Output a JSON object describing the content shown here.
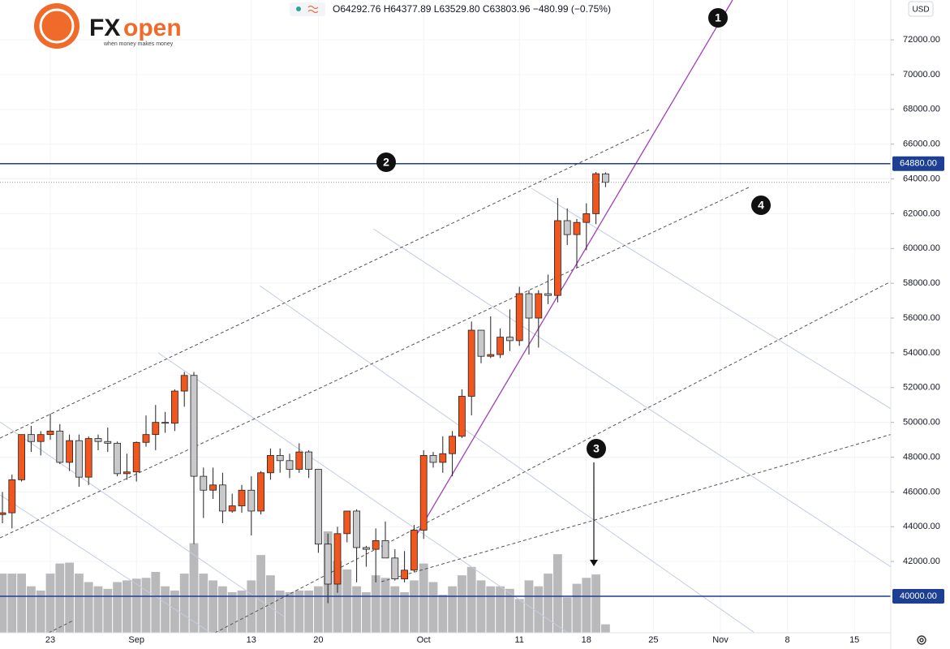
{
  "header": {
    "ohlc": "O64292.76 H64377.89 L63529.80 C63803.96 −480.99 (−0.75%)",
    "logo_fx": "FX",
    "logo_open": "open",
    "logo_tagline": "when money makes money",
    "currency": "USD"
  },
  "annotations": [
    "1",
    "2",
    "3",
    "4"
  ],
  "chart_data": {
    "type": "candlestick",
    "categories": [
      null,
      null,
      null,
      null,
      null,
      "23",
      null,
      null,
      null,
      null,
      null,
      null,
      null,
      null,
      "Sep",
      null,
      null,
      null,
      null,
      null,
      null,
      null,
      null,
      null,
      null,
      null,
      "13",
      null,
      null,
      null,
      null,
      null,
      null,
      "20",
      null,
      null,
      null,
      null,
      null,
      null,
      null,
      null,
      null,
      null,
      "Oct",
      null,
      null,
      null,
      null,
      null,
      null,
      null,
      null,
      null,
      "11",
      null,
      null,
      null,
      null,
      null,
      null,
      "18",
      null,
      null,
      null,
      null,
      null,
      null,
      "25",
      null,
      null,
      null,
      null,
      null,
      null,
      "Nov",
      null,
      null,
      null,
      null,
      null,
      null,
      "8",
      null,
      null,
      null,
      null,
      null,
      null,
      "15",
      null,
      null,
      null
    ],
    "open": [
      44700,
      44800,
      46700,
      49300,
      48900,
      49300,
      49500,
      47700,
      48950,
      46850,
      49070,
      48900,
      48800,
      47050,
      47150,
      48850,
      49300,
      50000,
      49950,
      51800,
      52700,
      46900,
      46100,
      46400,
      44900,
      45200,
      46100,
      44900,
      47100,
      48100,
      47800,
      47300,
      48300,
      47300,
      43000,
      40700,
      43600,
      44900,
      42800,
      42700,
      43200,
      42200,
      41000,
      41500,
      43800,
      48100,
      47700,
      48200,
      49200,
      51500,
      55300,
      53800,
      53900,
      54900,
      54700,
      57400,
      56000,
      57400,
      57300,
      61600,
      60800,
      61500,
      62000,
      64292.76,
      null,
      null,
      null,
      null,
      null,
      null,
      null,
      null,
      null,
      null,
      null,
      null,
      null,
      null,
      null,
      null,
      null,
      null,
      null,
      null,
      null,
      null,
      null,
      null,
      null,
      null,
      null,
      null,
      null
    ],
    "high": [
      46000,
      47000,
      49300,
      49800,
      49500,
      50500,
      49900,
      49300,
      49300,
      49200,
      49300,
      49700,
      48900,
      48200,
      48900,
      50400,
      51000,
      50600,
      51900,
      52900,
      52900,
      47400,
      47400,
      47100,
      45900,
      46400,
      46900,
      47200,
      48500,
      48500,
      48200,
      48800,
      48400,
      47300,
      43600,
      44000,
      44900,
      45000,
      42900,
      43900,
      44300,
      42700,
      42600,
      44100,
      48400,
      48300,
      49200,
      49500,
      51900,
      55800,
      55300,
      56100,
      55400,
      56500,
      57800,
      57600,
      57600,
      58500,
      62900,
      62300,
      61700,
      62600,
      64400,
      64377.89,
      null,
      null,
      null,
      null,
      null,
      null,
      null,
      null,
      null,
      null,
      null,
      null,
      null,
      null,
      null,
      null,
      null,
      null,
      null,
      null,
      null,
      null,
      null,
      null,
      null,
      null,
      null,
      null,
      null
    ],
    "low": [
      44200,
      43900,
      46600,
      48300,
      48100,
      49000,
      47600,
      47200,
      46300,
      46400,
      48400,
      48300,
      46900,
      46700,
      46600,
      48600,
      48400,
      49400,
      49500,
      50900,
      43000,
      44500,
      45600,
      44200,
      44800,
      44800,
      43500,
      44700,
      46700,
      47100,
      46800,
      47100,
      46800,
      42500,
      39600,
      40200,
      43100,
      40800,
      41700,
      40800,
      42200,
      40900,
      40800,
      41400,
      43300,
      47400,
      47100,
      46900,
      49100,
      50400,
      53400,
      53700,
      53700,
      54100,
      54400,
      53900,
      54300,
      56800,
      56900,
      60200,
      58900,
      59900,
      61400,
      63529.8,
      null,
      null,
      null,
      null,
      null,
      null,
      null,
      null,
      null,
      null,
      null,
      null,
      null,
      null,
      null,
      null,
      null,
      null,
      null,
      null,
      null,
      null,
      null,
      null,
      null,
      null,
      null,
      null,
      null
    ],
    "close": [
      44800,
      46700,
      49300,
      48900,
      49300,
      49500,
      47700,
      48950,
      46850,
      49070,
      48900,
      48800,
      47050,
      47150,
      48850,
      49300,
      50000,
      49950,
      51800,
      52700,
      46900,
      46100,
      46400,
      44900,
      45200,
      46100,
      44900,
      47100,
      48100,
      47800,
      47300,
      48300,
      47300,
      43000,
      40700,
      43600,
      44900,
      42800,
      42700,
      43200,
      42200,
      41000,
      41500,
      43800,
      48100,
      47700,
      48200,
      49200,
      51500,
      55300,
      53800,
      53900,
      54900,
      54700,
      57400,
      56000,
      57400,
      57300,
      61600,
      60800,
      61500,
      62000,
      64300,
      63803.96,
      null,
      null,
      null,
      null,
      null,
      null,
      null,
      null,
      null,
      null,
      null,
      null,
      null,
      null,
      null,
      null,
      null,
      null,
      null,
      null,
      null,
      null,
      null,
      null,
      null,
      null,
      null,
      null,
      null
    ],
    "volume": [
      70,
      70,
      70,
      55,
      50,
      70,
      82,
      83,
      70,
      60,
      55,
      52,
      60,
      62,
      64,
      65,
      72,
      55,
      50,
      70,
      106,
      70,
      62,
      55,
      48,
      50,
      62,
      92,
      68,
      50,
      48,
      50,
      50,
      55,
      120,
      85,
      75,
      55,
      48,
      68,
      65,
      55,
      48,
      62,
      82,
      60,
      45,
      55,
      68,
      78,
      62,
      55,
      55,
      52,
      40,
      62,
      55,
      70,
      93,
      42,
      58,
      65,
      69,
      10,
      null,
      null,
      null,
      null,
      null,
      null,
      null,
      null,
      null,
      null,
      null,
      null,
      null,
      null,
      null,
      null,
      null,
      null,
      null,
      null,
      null,
      null,
      null,
      null,
      null,
      null,
      null,
      null,
      null
    ],
    "up_color": "#f0561d",
    "down_color": "#c9c9cb",
    "volume_color": "#b9b9bb",
    "ylim": [
      37900,
      74290
    ],
    "yticks": [
      {
        "value": 42000,
        "label": "42000.00"
      },
      {
        "value": 44000,
        "label": "44000.00"
      },
      {
        "value": 46000,
        "label": "46000.00"
      },
      {
        "value": 48000,
        "label": "48000.00"
      },
      {
        "value": 50000,
        "label": "50000.00"
      },
      {
        "value": 52000,
        "label": "52000.00"
      },
      {
        "value": 54000,
        "label": "54000.00"
      },
      {
        "value": 56000,
        "label": "56000.00"
      },
      {
        "value": 58000,
        "label": "58000.00"
      },
      {
        "value": 60000,
        "label": "60000.00"
      },
      {
        "value": 62000,
        "label": "62000.00"
      },
      {
        "value": 64000,
        "label": "64000.00"
      },
      {
        "value": 66000,
        "label": "66000.00"
      },
      {
        "value": 68000,
        "label": "68000.00"
      },
      {
        "value": 70000,
        "label": "70000.00"
      },
      {
        "value": 72000,
        "label": "72000.00"
      }
    ],
    "price_lines": [
      {
        "value": 64880,
        "label": "64880.00"
      },
      {
        "value": 40000,
        "label": "40000.00"
      }
    ],
    "price_line_color": "#1c3f94",
    "grid": true
  }
}
